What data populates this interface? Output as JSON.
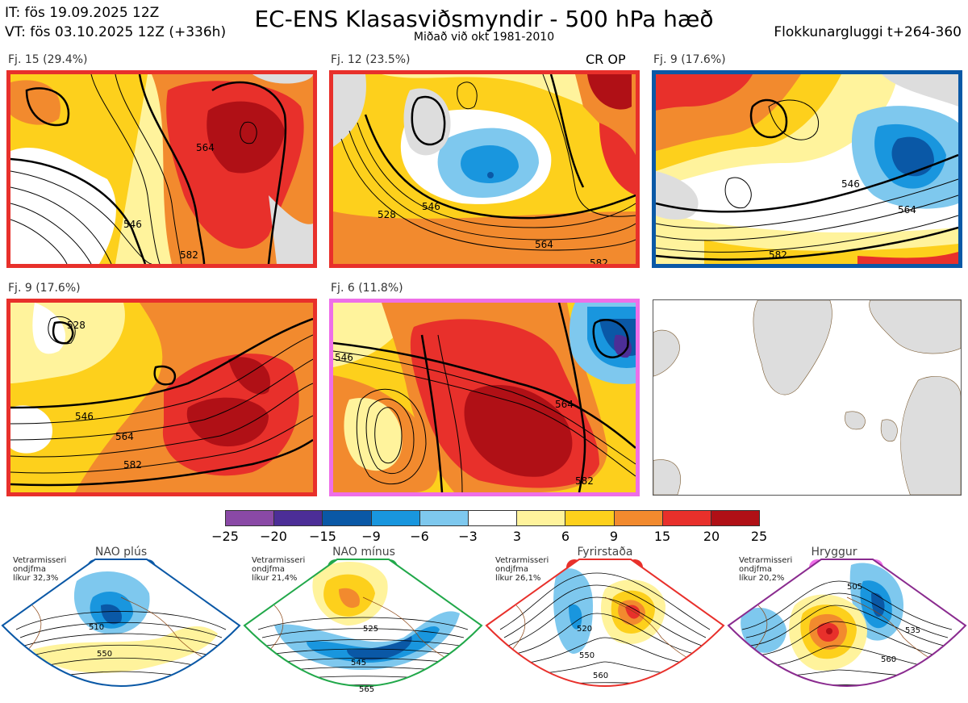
{
  "header": {
    "init_time": "IT: fös 19.09.2025 12Z",
    "valid_time": "VT: fös 03.10.2025 12Z  (+336h)",
    "title": "EC-ENS Klasasviðsmyndir - 500 hPa hæð",
    "subtitle": "Miðað við okt 1981-2010",
    "window": "Flokkunargluggi t+264-360"
  },
  "panels": [
    {
      "label": "Fj. 15 (29.4%)",
      "border": "#e8302b",
      "tag": "",
      "contours": [
        "546",
        "564",
        "582"
      ]
    },
    {
      "label": "Fj. 12 (23.5%)",
      "border": "#e8302b",
      "tag": "CR OP",
      "contours": [
        "528",
        "546",
        "564",
        "582"
      ]
    },
    {
      "label": "Fj. 9 (17.6%)",
      "border": "#0a58a6",
      "tag": "",
      "contours": [
        "546",
        "564",
        "582"
      ]
    },
    {
      "label": "Fj. 9 (17.6%)",
      "border": "#e8302b",
      "tag": "",
      "contours": [
        "528",
        "546",
        "564",
        "582"
      ]
    },
    {
      "label": "Fj. 6 (11.8%)",
      "border": "#ee6fe8",
      "tag": "",
      "contours": [
        "546",
        "564",
        "582"
      ]
    }
  ],
  "colorbar": {
    "colors": [
      "#8a49a6",
      "#4c2e97",
      "#0a58a6",
      "#1996de",
      "#7ec8ee",
      "#ffffff",
      "#fff39c",
      "#fdd01c",
      "#f28a2e",
      "#e8302b",
      "#b01016"
    ],
    "ticks": [
      "−25",
      "−20",
      "−15",
      "−9",
      "−6",
      "−3",
      "3",
      "6",
      "9",
      "15",
      "20",
      "25"
    ]
  },
  "regimes": [
    {
      "title": "NAO plús",
      "note": [
        "Vetrarmisseri",
        "ondjfma",
        "líkur 32,3%"
      ],
      "color": "#0a58a6",
      "contours": [
        "510",
        "550"
      ]
    },
    {
      "title": "NAO mínus",
      "note": [
        "Vetrarmisseri",
        "ondjfma",
        "líkur 21,4%"
      ],
      "color": "#21a84a",
      "contours": [
        "525",
        "545",
        "565"
      ]
    },
    {
      "title": "Fyrirstaða",
      "note": [
        "Vetrarmisseri",
        "ondjfma",
        "líkur 26,1%"
      ],
      "color": "#e8302b",
      "contours": [
        "520",
        "550",
        "560"
      ]
    },
    {
      "title": "Hryggur",
      "note": [
        "Vetrarmisseri",
        "ondjfma",
        "líkur 20,2%"
      ],
      "color": "#ee6fe8",
      "contours": [
        "505",
        "535",
        "560"
      ]
    }
  ]
}
